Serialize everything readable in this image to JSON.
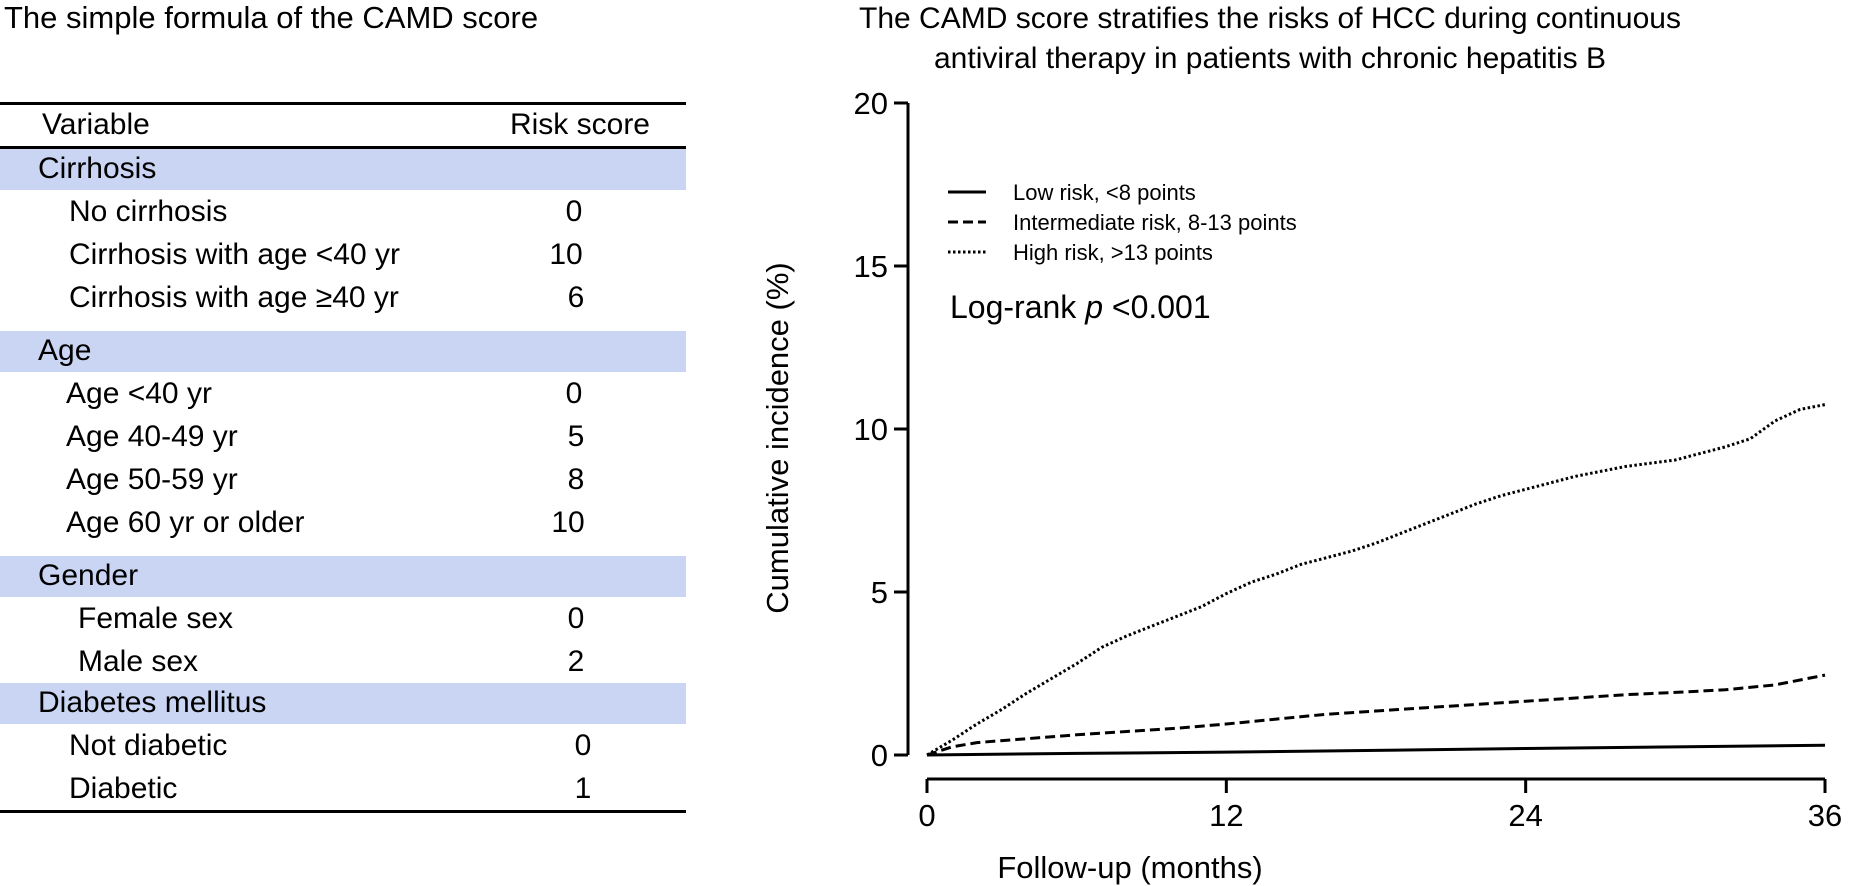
{
  "left_panel": {
    "title": "The simple formula of the CAMD score",
    "table": {
      "header": {
        "variable": "Variable",
        "score": "Risk score"
      },
      "sections": [
        {
          "name": "Cirrhosis",
          "rows": [
            {
              "label": "No cirrhosis",
              "score": "0"
            },
            {
              "label": "Cirrhosis with age <40 yr",
              "score": "10"
            },
            {
              "label": "Cirrhosis with age ≥40 yr",
              "score": "6"
            }
          ]
        },
        {
          "name": "Age",
          "rows": [
            {
              "label": "Age <40 yr",
              "score": "0"
            },
            {
              "label": "Age 40-49 yr",
              "score": "5"
            },
            {
              "label": "Age 50-59 yr",
              "score": "8"
            },
            {
              "label": "Age 60 yr or older",
              "score": "10"
            }
          ]
        },
        {
          "name": "Gender",
          "rows": [
            {
              "label": "Female sex",
              "score": "0"
            },
            {
              "label": "Male sex",
              "score": "2"
            }
          ]
        },
        {
          "name": "Diabetes mellitus",
          "rows": [
            {
              "label": "Not diabetic",
              "score": "0"
            },
            {
              "label": "Diabetic",
              "score": "1"
            }
          ]
        }
      ]
    }
  },
  "chart_data": {
    "type": "line",
    "title": "The CAMD score stratifies the risks of HCC during continuous antiviral therapy in patients with chronic hepatitis B",
    "title_lines": [
      "The CAMD score stratifies the risks of HCC during continuous",
      "antiviral therapy in patients with chronic hepatitis B"
    ],
    "xlabel": "Follow-up (months)",
    "ylabel": "Cumulative incidence (%)",
    "xlim": [
      0,
      36
    ],
    "ylim": [
      0,
      20
    ],
    "xticks": [
      0,
      12,
      24,
      36
    ],
    "yticks": [
      0,
      5,
      10,
      15,
      20
    ],
    "grid": false,
    "legend_position": "top-left",
    "annotation": {
      "prefix": "Log-rank ",
      "italic": "p",
      "suffix": " <0.001"
    },
    "series": [
      {
        "name": "Low risk, <8 points",
        "style": "solid",
        "x": [
          0,
          6,
          12,
          18,
          24,
          30,
          36
        ],
        "y": [
          0,
          0.05,
          0.09,
          0.14,
          0.2,
          0.25,
          0.3
        ]
      },
      {
        "name": "Intermediate risk, 8-13 points",
        "style": "dashed",
        "x": [
          0,
          1,
          2,
          4,
          6,
          8,
          10,
          12,
          14,
          16,
          18,
          20,
          22,
          24,
          26,
          28,
          30,
          32,
          34,
          36
        ],
        "y": [
          0,
          0.25,
          0.38,
          0.5,
          0.62,
          0.72,
          0.82,
          0.95,
          1.1,
          1.25,
          1.35,
          1.45,
          1.55,
          1.65,
          1.75,
          1.85,
          1.92,
          2.0,
          2.15,
          2.45
        ]
      },
      {
        "name": "High risk, >13 points",
        "style": "dotted",
        "x": [
          0,
          1,
          2,
          3,
          4,
          5,
          6,
          7,
          8,
          9,
          10,
          11,
          12,
          13,
          14,
          15,
          16,
          17,
          18,
          19,
          20,
          21,
          22,
          23,
          24,
          25,
          26,
          27,
          28,
          29,
          30,
          31,
          32,
          33,
          34,
          35,
          36
        ],
        "y": [
          0,
          0.45,
          0.95,
          1.4,
          1.9,
          2.35,
          2.8,
          3.3,
          3.65,
          3.95,
          4.25,
          4.55,
          4.95,
          5.3,
          5.55,
          5.85,
          6.05,
          6.25,
          6.5,
          6.8,
          7.1,
          7.4,
          7.7,
          7.95,
          8.15,
          8.35,
          8.55,
          8.7,
          8.85,
          8.95,
          9.05,
          9.25,
          9.45,
          9.7,
          10.25,
          10.6,
          10.75
        ]
      }
    ]
  }
}
